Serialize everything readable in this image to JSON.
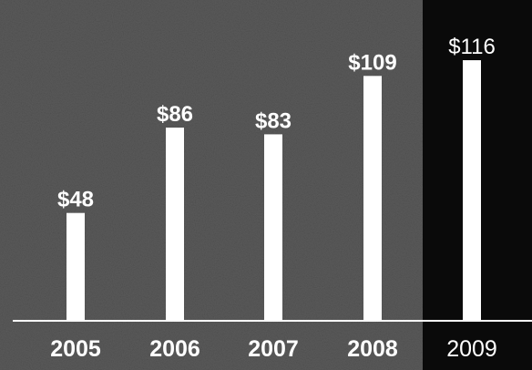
{
  "chart_data": {
    "type": "bar",
    "categories": [
      "2005",
      "2006",
      "2007",
      "2008",
      "2009"
    ],
    "values": [
      48,
      86,
      83,
      109,
      116
    ],
    "value_labels": [
      "$48",
      "$86",
      "$83",
      "$109",
      "$116"
    ],
    "title": "",
    "xlabel": "",
    "ylabel": "",
    "ylim": [
      0,
      130
    ],
    "grid": false,
    "highlighted_category": "2009",
    "colors": {
      "background": "#5b5b5b",
      "highlight_background": "#0a0a0a",
      "bar": "#ffffff",
      "text": "#ffffff",
      "baseline": "#ffffff"
    }
  }
}
